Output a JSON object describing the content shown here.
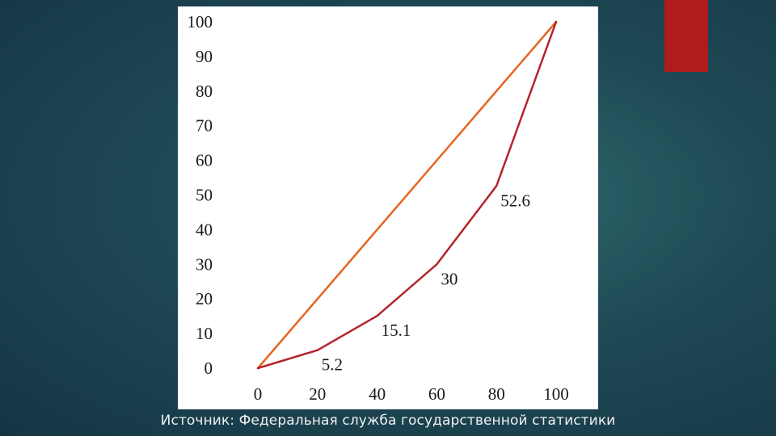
{
  "chart_data": {
    "type": "line",
    "title": "",
    "xlabel": "",
    "ylabel": "",
    "x_ticks": [
      "0",
      "20",
      "40",
      "60",
      "80",
      "100"
    ],
    "y_ticks": [
      "0",
      "10",
      "20",
      "30",
      "40",
      "50",
      "60",
      "70",
      "80",
      "90",
      "100"
    ],
    "xlim": [
      0,
      100
    ],
    "ylim": [
      0,
      100
    ],
    "grid": false,
    "series": [
      {
        "name": "",
        "color": "#e8641e",
        "x": [
          0,
          100
        ],
        "y": [
          0,
          100
        ],
        "labels": []
      },
      {
        "name": "",
        "color": "#b5232a",
        "x": [
          0,
          20,
          40,
          60,
          80,
          100
        ],
        "y": [
          0,
          5.2,
          15.1,
          30,
          52.6,
          100
        ],
        "labels": [
          "",
          "5.2",
          "15.1",
          "30",
          "52.6",
          ""
        ]
      }
    ]
  },
  "source": "Источник: Федеральная служба государственной статистики"
}
